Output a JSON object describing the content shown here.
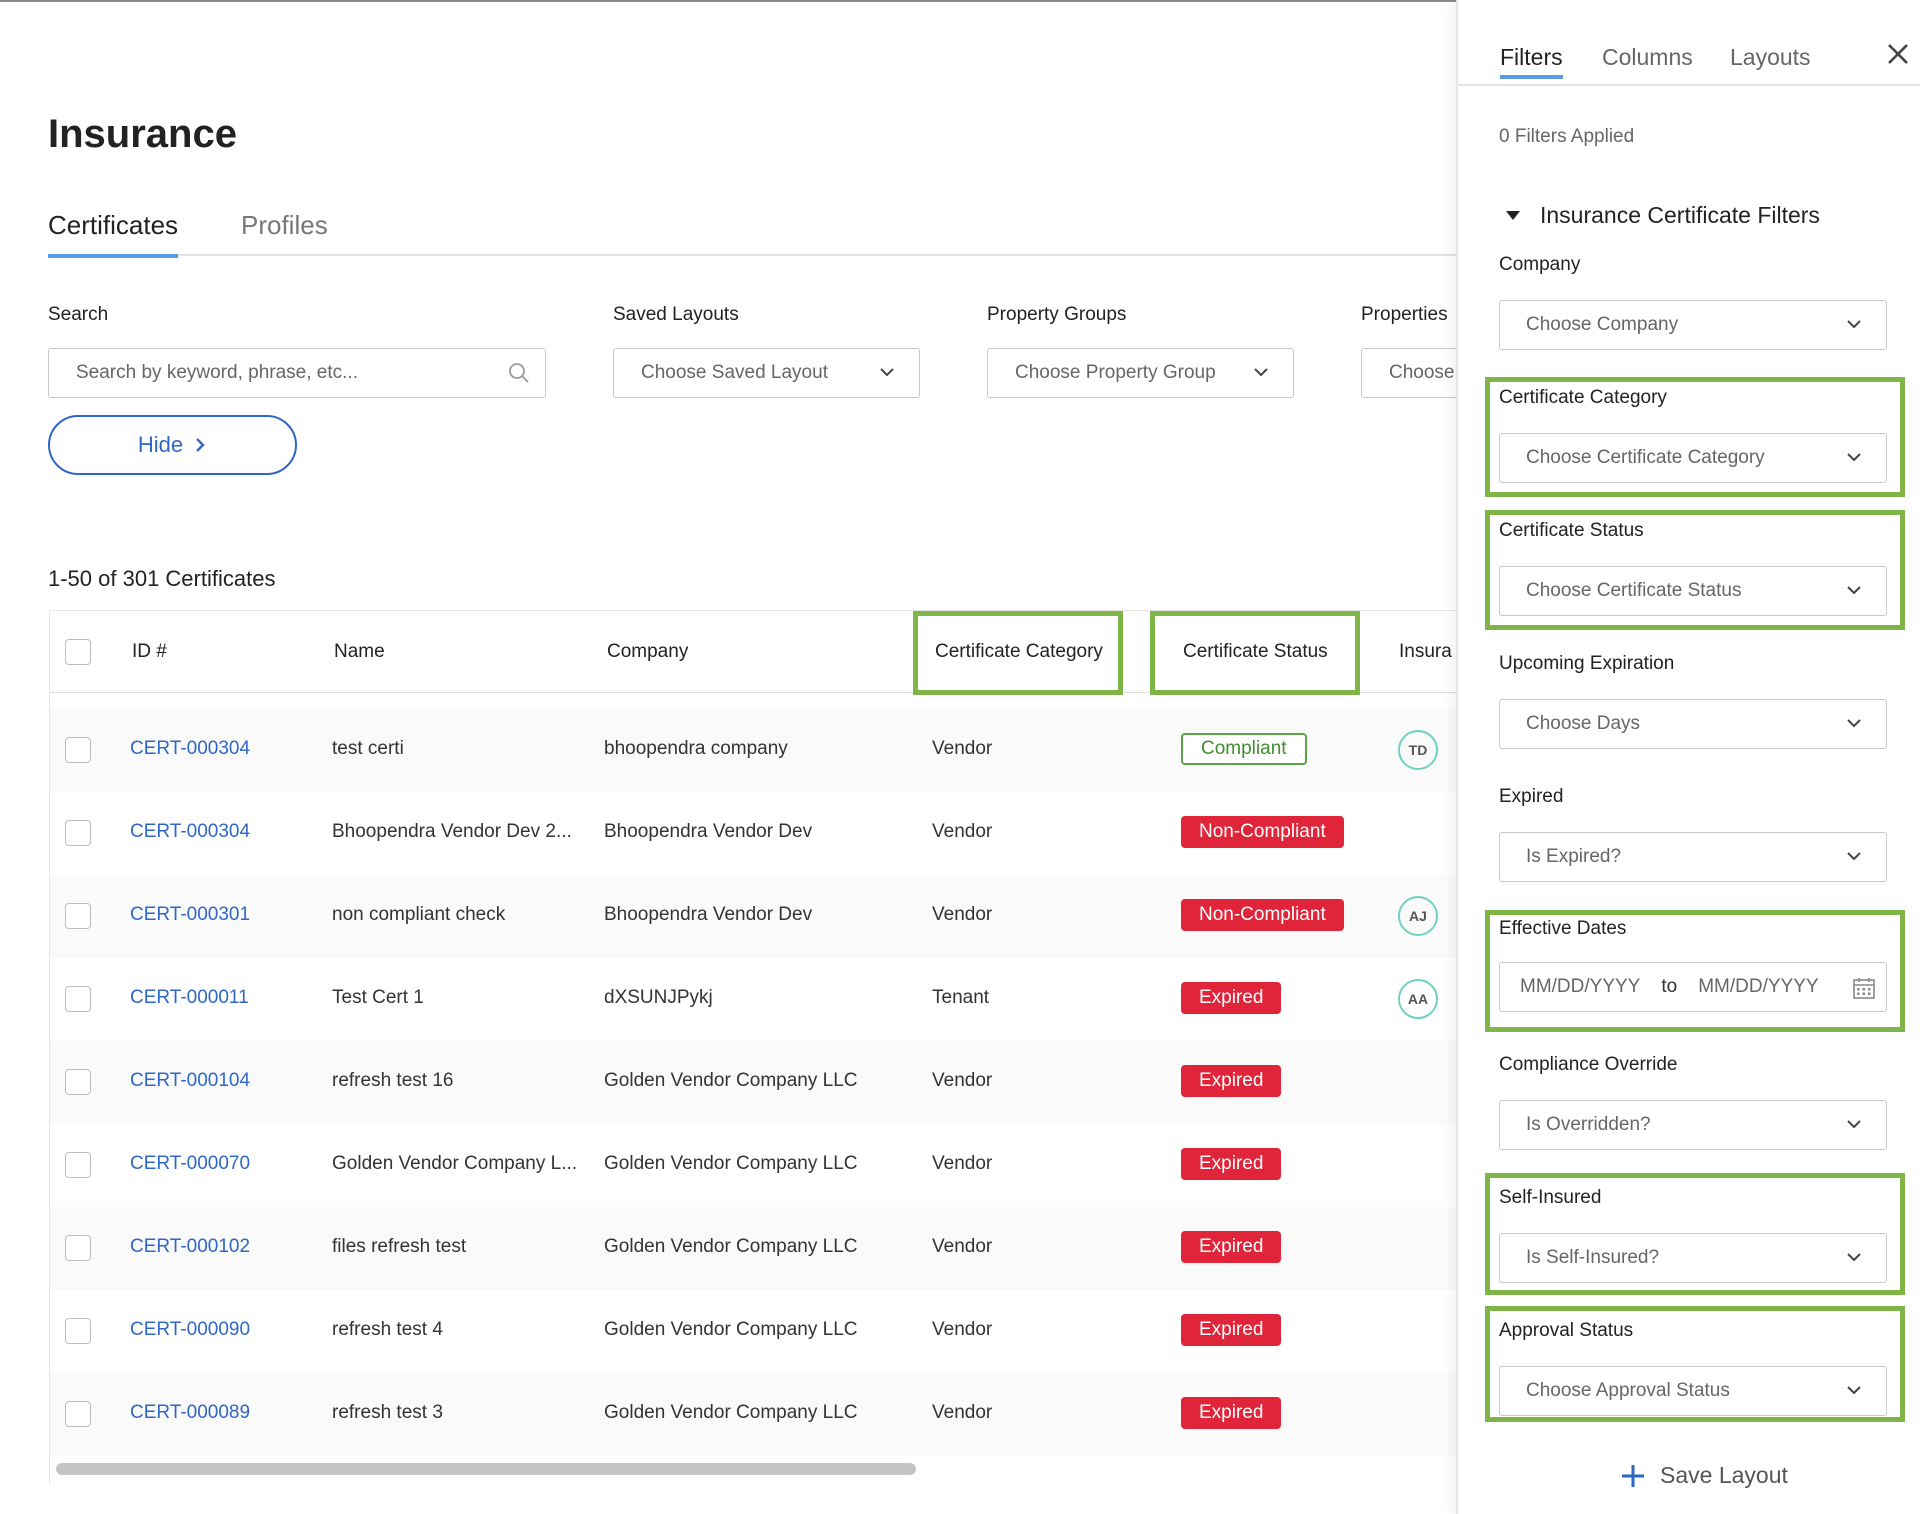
{
  "page": {
    "title": "Insurance",
    "tabs": [
      "Certificates",
      "Profiles"
    ]
  },
  "toolbar": {
    "search_label": "Search",
    "search_placeholder": "Search by keyword, phrase, etc...",
    "saved_layouts_label": "Saved Layouts",
    "saved_layouts_value": "Choose Saved Layout",
    "property_groups_label": "Property Groups",
    "property_groups_value": "Choose Property Group",
    "properties_label": "Properties",
    "properties_value": "Choose",
    "hide_label": "Hide"
  },
  "table": {
    "count_text": "1-50 of 301 Certificates",
    "columns": [
      "ID #",
      "Name",
      "Company",
      "Certificate Category",
      "Certificate Status",
      "Insura"
    ],
    "rows": [
      {
        "id": "CERT-000304",
        "name": "test certi",
        "company": "bhoopendra company",
        "category": "Vendor",
        "status": "Compliant",
        "avatar": "TD"
      },
      {
        "id": "CERT-000304",
        "name": "Bhoopendra Vendor Dev 2...",
        "company": "Bhoopendra Vendor Dev",
        "category": "Vendor",
        "status": "Non-Compliant",
        "avatar": ""
      },
      {
        "id": "CERT-000301",
        "name": "non compliant check",
        "company": "Bhoopendra Vendor Dev",
        "category": "Vendor",
        "status": "Non-Compliant",
        "avatar": "AJ"
      },
      {
        "id": "CERT-000011",
        "name": "Test Cert 1",
        "company": "dXSUNJPykj",
        "category": "Tenant",
        "status": "Expired",
        "avatar": "AA"
      },
      {
        "id": "CERT-000104",
        "name": "refresh test 16",
        "company": "Golden Vendor Company LLC",
        "category": "Vendor",
        "status": "Expired",
        "avatar": ""
      },
      {
        "id": "CERT-000070",
        "name": "Golden Vendor Company L...",
        "company": "Golden Vendor Company LLC",
        "category": "Vendor",
        "status": "Expired",
        "avatar": ""
      },
      {
        "id": "CERT-000102",
        "name": "files refresh test",
        "company": "Golden Vendor Company LLC",
        "category": "Vendor",
        "status": "Expired",
        "avatar": ""
      },
      {
        "id": "CERT-000090",
        "name": "refresh test 4",
        "company": "Golden Vendor Company LLC",
        "category": "Vendor",
        "status": "Expired",
        "avatar": ""
      },
      {
        "id": "CERT-000089",
        "name": "refresh test 3",
        "company": "Golden Vendor Company LLC",
        "category": "Vendor",
        "status": "Expired",
        "avatar": ""
      }
    ]
  },
  "panel": {
    "tabs": [
      "Filters",
      "Columns",
      "Layouts"
    ],
    "filters_applied": "0 Filters Applied",
    "section_title": "Insurance Certificate Filters",
    "company_label": "Company",
    "company_value": "Choose Company",
    "category_label": "Certificate Category",
    "category_value": "Choose Certificate Category",
    "status_label": "Certificate Status",
    "status_value": "Choose Certificate Status",
    "expiration_label": "Upcoming Expiration",
    "expiration_value": "Choose Days",
    "expired_label": "Expired",
    "expired_value": "Is Expired?",
    "dates_label": "Effective Dates",
    "date_from": "MM/DD/YYYY",
    "date_to_word": "to",
    "date_to": "MM/DD/YYYY",
    "override_label": "Compliance Override",
    "override_value": "Is Overridden?",
    "self_insured_label": "Self-Insured",
    "self_insured_value": "Is Self-Insured?",
    "approval_label": "Approval Status",
    "approval_value": "Choose Approval Status",
    "save_label": "Save Layout"
  },
  "colors": {
    "link": "#2f67c6",
    "highlight": "#7fb447",
    "danger": "#e0243a",
    "success": "#3f8e2f",
    "tab_accent": "#5a9be6"
  },
  "icons": [
    "search-icon",
    "chevron-down-icon",
    "chevron-right-icon",
    "close-icon",
    "caret-down-icon",
    "calendar-icon",
    "plus-icon"
  ]
}
